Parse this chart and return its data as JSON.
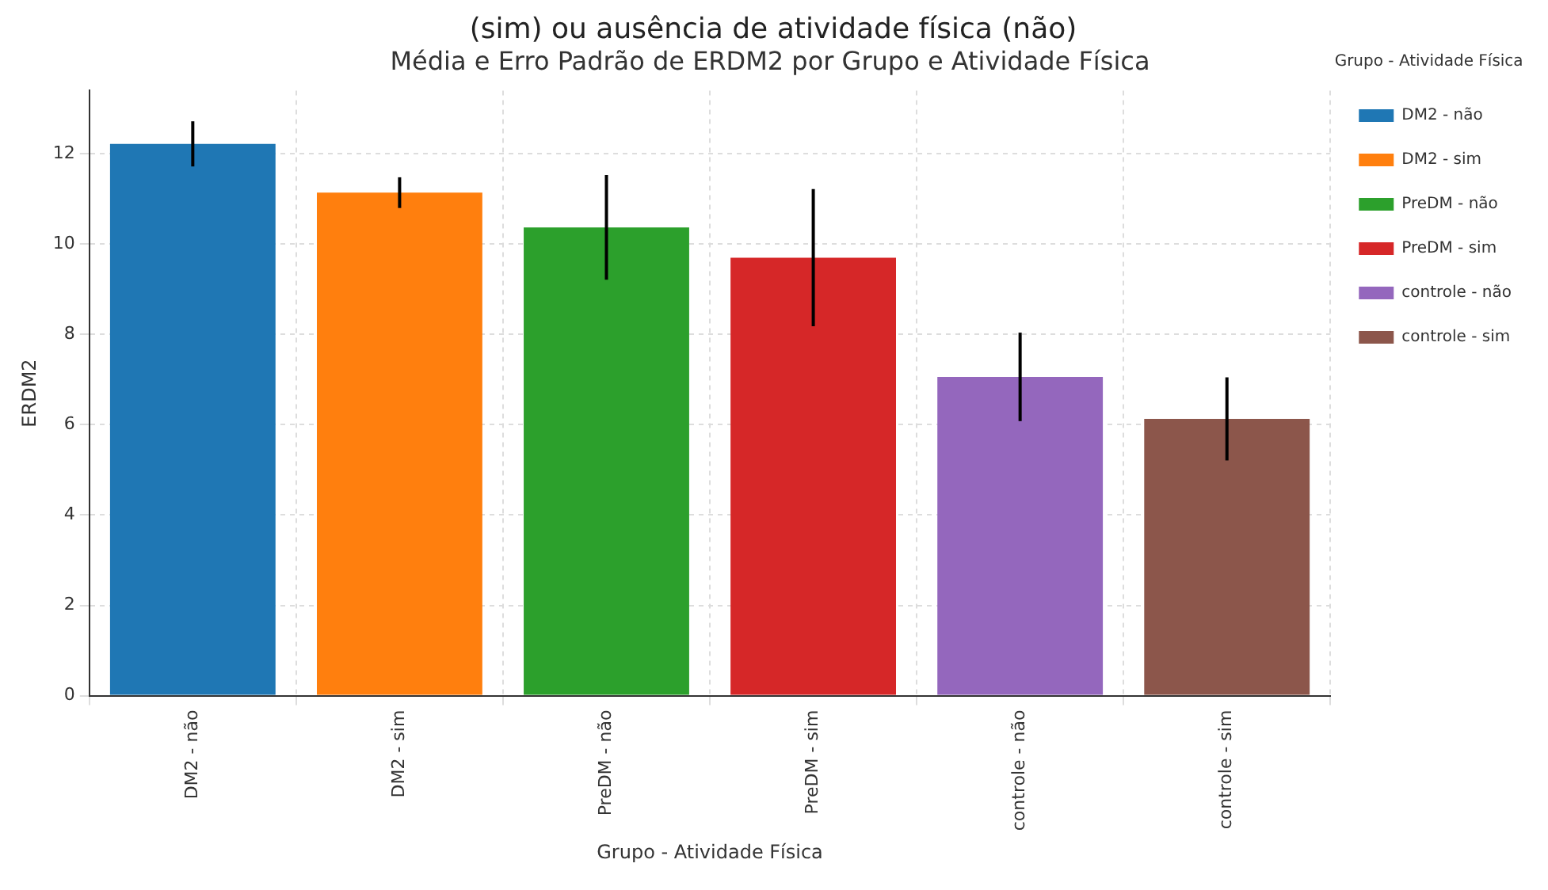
{
  "chart_data": {
    "type": "bar",
    "title": "Média e Erro Padrão de ERDM2 por Grupo e Atividade Física",
    "annotations": [
      "(sim) ou ausência de atividade física (não)"
    ],
    "xlabel": "Grupo - Atividade Física",
    "ylabel": "ERDM2",
    "legend_title": "Grupo - Atividade Física",
    "categories": [
      "DM2 - não",
      "DM2 - sim",
      "PreDM - não",
      "PreDM - sim",
      "controle - não",
      "controle - sim"
    ],
    "series": [
      {
        "name": "DM2 - não",
        "color": "#1f77b4",
        "values": [
          12.22,
          null,
          null,
          null,
          null,
          null
        ],
        "errors": [
          0.5,
          null,
          null,
          null,
          null,
          null
        ]
      },
      {
        "name": "DM2 - sim",
        "color": "#ff7f0e",
        "values": [
          null,
          11.14,
          null,
          null,
          null,
          null
        ],
        "errors": [
          null,
          0.34,
          null,
          null,
          null,
          null
        ]
      },
      {
        "name": "PreDM - não",
        "color": "#2ca02c",
        "values": [
          null,
          null,
          10.37,
          null,
          null,
          null
        ],
        "errors": [
          null,
          null,
          1.16,
          null,
          null,
          null
        ]
      },
      {
        "name": "PreDM - sim",
        "color": "#d62728",
        "values": [
          null,
          null,
          null,
          9.7,
          null,
          null
        ],
        "errors": [
          null,
          null,
          null,
          1.52,
          null,
          null
        ]
      },
      {
        "name": "controle - não",
        "color": "#9467bd",
        "values": [
          null,
          null,
          null,
          null,
          7.06,
          null
        ],
        "errors": [
          null,
          null,
          null,
          null,
          0.98,
          null
        ]
      },
      {
        "name": "controle - sim",
        "color": "#8c564b",
        "values": [
          null,
          null,
          null,
          null,
          null,
          6.13
        ],
        "errors": [
          null,
          null,
          null,
          null,
          null,
          0.92
        ]
      }
    ],
    "ylim": [
      0,
      13.4
    ],
    "yticks": [
      0,
      2,
      4,
      6,
      8,
      10,
      12
    ],
    "grid": true,
    "legend": "top right"
  }
}
